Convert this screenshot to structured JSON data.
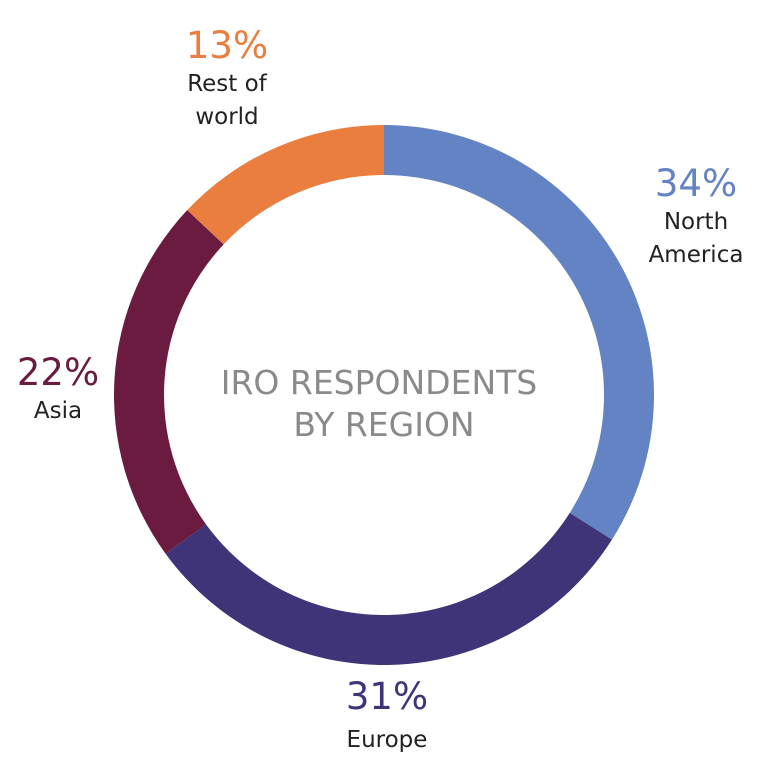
{
  "chart_data": {
    "type": "pie",
    "style": "donut",
    "title": "IRO RESPONDENTS BY REGION",
    "title_lines": [
      "IRO RESPONDENTS",
      "BY REGION"
    ],
    "slices": [
      {
        "label": "North America",
        "label_lines": [
          "North",
          "America"
        ],
        "value": 34,
        "display": "34%",
        "color": "#6483c4"
      },
      {
        "label": "Europe",
        "label_lines": [
          "Europe"
        ],
        "value": 31,
        "display": "31%",
        "color": "#403479"
      },
      {
        "label": "Asia",
        "label_lines": [
          "Asia"
        ],
        "value": 22,
        "display": "22%",
        "color": "#6b1b40"
      },
      {
        "label": "Rest of world",
        "label_lines": [
          "Rest of",
          "world"
        ],
        "value": 13,
        "display": "13%",
        "color": "#e97e3f"
      }
    ],
    "center_text_color": "#8a8a8a",
    "label_text_color": "#222222"
  }
}
